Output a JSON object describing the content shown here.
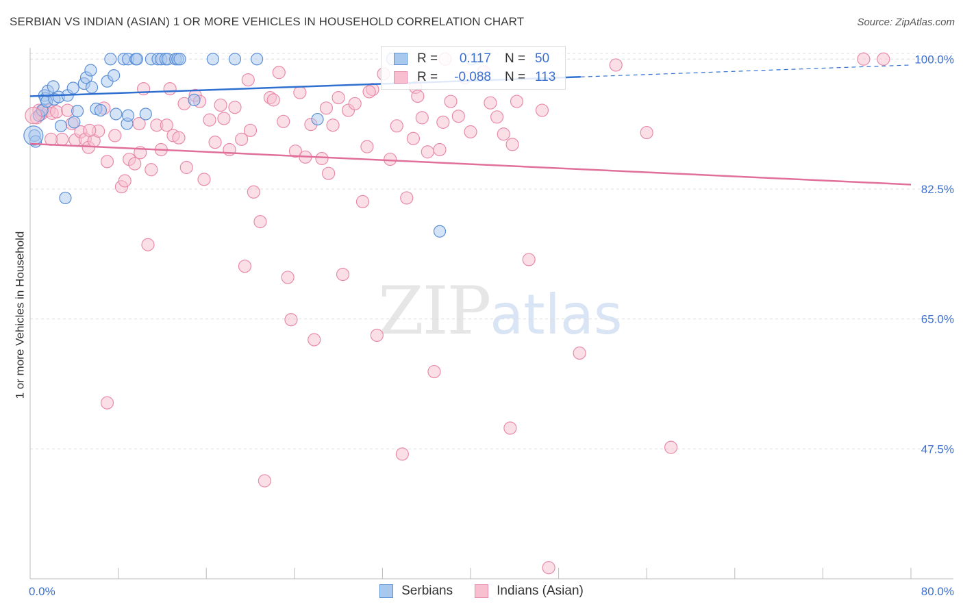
{
  "header": {
    "title": "SERBIAN VS INDIAN (ASIAN) 1 OR MORE VEHICLES IN HOUSEHOLD CORRELATION CHART",
    "source": "Source: ZipAtlas.com"
  },
  "watermark": {
    "zip": "ZIP",
    "atlas": "atlas"
  },
  "legend": {
    "r_label": "R =",
    "n_label": "N =",
    "rows": [
      {
        "name": "Serbians",
        "r": "0.117",
        "n": "50"
      },
      {
        "name": "Indians (Asian)",
        "r": "-0.088",
        "n": "113"
      }
    ]
  },
  "colors": {
    "serbian_fill": "#a9c8ee",
    "serbian_stroke": "#5b8fd6",
    "serbian_line": "#2f6fd0",
    "indian_fill": "#f7bfd0",
    "indian_stroke": "#e88aaa",
    "indian_line": "#e0709a",
    "tick_text": "#3a6fd0",
    "grid": "#dcdcdc"
  },
  "chart_data": {
    "type": "scatter",
    "title": "SERBIAN VS INDIAN (ASIAN) 1 OR MORE VEHICLES IN HOUSEHOLD CORRELATION CHART",
    "xlabel": "",
    "ylabel": "1 or more Vehicles in Household",
    "xlim": [
      0,
      80
    ],
    "ylim": [
      30,
      101.5
    ],
    "x_ticks": [
      {
        "value": 0,
        "label": "0.0%"
      },
      {
        "value": 80,
        "label": "80.0%"
      }
    ],
    "y_ticks": [
      {
        "value": 100,
        "label": "100.0%"
      },
      {
        "value": 82.5,
        "label": "82.5%"
      },
      {
        "value": 65,
        "label": "65.0%"
      },
      {
        "value": 47.5,
        "label": "47.5%"
      }
    ],
    "series": [
      {
        "name": "Serbians",
        "r": 0.117,
        "n": 50,
        "trend": {
          "x0": 0,
          "y0": 95.0,
          "x1": 50,
          "y1": 97.6,
          "dash_to_x": 80,
          "dash_to_y": 99.2
        },
        "points": [
          [
            0.4,
            89.7
          ],
          [
            0.5,
            88.9
          ],
          [
            0.8,
            92.4
          ],
          [
            1.1,
            93.1
          ],
          [
            1.3,
            95.1
          ],
          [
            1.4,
            94.7
          ],
          [
            1.5,
            94.3
          ],
          [
            1.6,
            95.7
          ],
          [
            2.1,
            96.3
          ],
          [
            2.2,
            94.6
          ],
          [
            2.6,
            94.9
          ],
          [
            2.8,
            91.0
          ],
          [
            3.4,
            95.1
          ],
          [
            3.9,
            96.1
          ],
          [
            4.0,
            91.5
          ],
          [
            4.3,
            93.0
          ],
          [
            4.9,
            96.7
          ],
          [
            5.1,
            97.5
          ],
          [
            5.5,
            98.5
          ],
          [
            5.6,
            96.2
          ],
          [
            6.0,
            93.3
          ],
          [
            6.4,
            93.1
          ],
          [
            7.0,
            97.0
          ],
          [
            7.6,
            97.8
          ],
          [
            7.8,
            92.6
          ],
          [
            8.8,
            91.3
          ],
          [
            8.9,
            92.4
          ],
          [
            10.5,
            92.6
          ],
          [
            7.3,
            100.0
          ],
          [
            8.5,
            100.0
          ],
          [
            8.9,
            100.0
          ],
          [
            9.6,
            100.0
          ],
          [
            9.7,
            100.0
          ],
          [
            11.0,
            100.0
          ],
          [
            11.6,
            100.0
          ],
          [
            11.9,
            100.0
          ],
          [
            12.3,
            100.0
          ],
          [
            12.5,
            100.0
          ],
          [
            13.2,
            100.0
          ],
          [
            13.4,
            100.0
          ],
          [
            13.6,
            100.0
          ],
          [
            16.6,
            100.0
          ],
          [
            18.6,
            100.0
          ],
          [
            20.6,
            100.0
          ],
          [
            14.9,
            94.5
          ],
          [
            26.1,
            91.9
          ],
          [
            40.1,
            100.0
          ],
          [
            32.9,
            100.0
          ],
          [
            3.2,
            81.3
          ],
          [
            37.2,
            76.8
          ]
        ]
      },
      {
        "name": "Indians (Asian)",
        "r": -0.088,
        "n": 113,
        "trend": {
          "x0": 0,
          "y0": 88.6,
          "x1": 80,
          "y1": 83.1
        },
        "points": [
          [
            0.6,
            92.1
          ],
          [
            0.8,
            93.1
          ],
          [
            1.0,
            92.6
          ],
          [
            1.2,
            93.0
          ],
          [
            1.7,
            93.1
          ],
          [
            2.0,
            92.7
          ],
          [
            2.4,
            92.9
          ],
          [
            2.9,
            89.2
          ],
          [
            3.4,
            93.1
          ],
          [
            3.8,
            91.3
          ],
          [
            4.1,
            89.1
          ],
          [
            4.6,
            90.2
          ],
          [
            5.0,
            89.2
          ],
          [
            5.3,
            88.1
          ],
          [
            5.8,
            89.0
          ],
          [
            6.2,
            90.3
          ],
          [
            6.7,
            93.4
          ],
          [
            7.0,
            86.2
          ],
          [
            7.7,
            89.7
          ],
          [
            8.3,
            82.8
          ],
          [
            8.6,
            83.6
          ],
          [
            9.0,
            86.5
          ],
          [
            9.5,
            85.9
          ],
          [
            9.9,
            91.3
          ],
          [
            10.3,
            96.0
          ],
          [
            10.7,
            75.0
          ],
          [
            11.0,
            85.1
          ],
          [
            11.5,
            91.1
          ],
          [
            11.9,
            87.8
          ],
          [
            12.4,
            91.1
          ],
          [
            12.7,
            96.0
          ],
          [
            13.0,
            89.7
          ],
          [
            13.5,
            89.4
          ],
          [
            14.2,
            85.4
          ],
          [
            15.0,
            95.1
          ],
          [
            15.4,
            94.3
          ],
          [
            15.8,
            83.8
          ],
          [
            16.3,
            91.8
          ],
          [
            16.8,
            88.8
          ],
          [
            17.3,
            93.8
          ],
          [
            17.6,
            92.0
          ],
          [
            18.1,
            87.8
          ],
          [
            18.6,
            93.5
          ],
          [
            19.2,
            89.2
          ],
          [
            19.5,
            72.1
          ],
          [
            19.8,
            97.2
          ],
          [
            20.3,
            82.1
          ],
          [
            20.9,
            78.1
          ],
          [
            21.3,
            43.2
          ],
          [
            21.8,
            94.8
          ],
          [
            22.1,
            94.5
          ],
          [
            22.6,
            98.2
          ],
          [
            23.0,
            91.6
          ],
          [
            23.4,
            70.6
          ],
          [
            23.7,
            64.9
          ],
          [
            24.1,
            87.6
          ],
          [
            24.5,
            95.5
          ],
          [
            25.0,
            86.8
          ],
          [
            25.5,
            91.2
          ],
          [
            25.8,
            62.2
          ],
          [
            26.5,
            86.6
          ],
          [
            27.1,
            84.6
          ],
          [
            27.5,
            91.1
          ],
          [
            28.0,
            94.8
          ],
          [
            28.4,
            71.0
          ],
          [
            28.9,
            93.1
          ],
          [
            29.5,
            94.0
          ],
          [
            30.2,
            80.8
          ],
          [
            30.6,
            88.2
          ],
          [
            31.1,
            95.9
          ],
          [
            31.5,
            62.8
          ],
          [
            32.1,
            98.0
          ],
          [
            32.7,
            86.5
          ],
          [
            33.3,
            91.0
          ],
          [
            33.8,
            46.8
          ],
          [
            34.2,
            81.3
          ],
          [
            35.0,
            96.2
          ],
          [
            35.6,
            92.1
          ],
          [
            36.1,
            87.5
          ],
          [
            36.7,
            57.9
          ],
          [
            37.2,
            87.8
          ],
          [
            37.7,
            100.0
          ],
          [
            38.2,
            94.3
          ],
          [
            38.9,
            92.3
          ],
          [
            39.5,
            97.5
          ],
          [
            40.0,
            90.2
          ],
          [
            41.2,
            98.3
          ],
          [
            41.8,
            94.1
          ],
          [
            42.4,
            92.2
          ],
          [
            43.0,
            89.9
          ],
          [
            43.6,
            50.3
          ],
          [
            44.2,
            94.3
          ],
          [
            45.3,
            73.0
          ],
          [
            46.5,
            93.1
          ],
          [
            47.1,
            31.5
          ],
          [
            49.9,
            60.4
          ],
          [
            53.2,
            99.2
          ],
          [
            56.0,
            90.1
          ],
          [
            58.2,
            47.7
          ],
          [
            75.7,
            100.0
          ],
          [
            77.5,
            100.0
          ],
          [
            7.0,
            53.7
          ],
          [
            1.9,
            89.2
          ],
          [
            5.4,
            90.4
          ],
          [
            14.0,
            94.0
          ],
          [
            20.0,
            90.4
          ],
          [
            26.9,
            93.4
          ],
          [
            30.8,
            95.6
          ],
          [
            35.2,
            95.0
          ],
          [
            10.0,
            87.4
          ],
          [
            34.8,
            89.3
          ],
          [
            37.5,
            91.5
          ],
          [
            43.8,
            88.5
          ]
        ]
      }
    ]
  }
}
